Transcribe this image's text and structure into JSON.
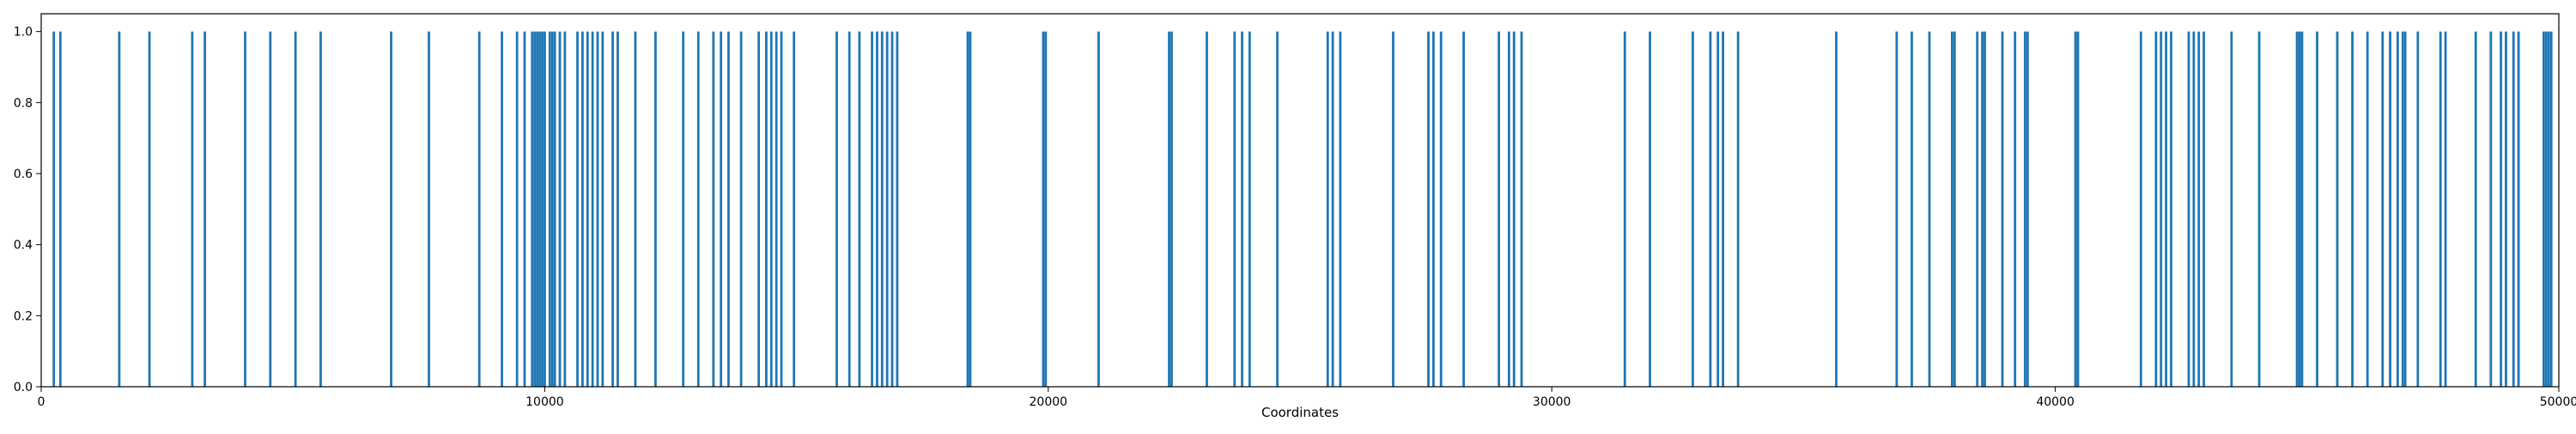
{
  "chart_data": {
    "type": "bar",
    "title": "",
    "xlabel": "Coordinates",
    "ylabel": "",
    "xlim": [
      0,
      50000
    ],
    "ylim": [
      0,
      1.05
    ],
    "grid": false,
    "bar_color": "#1f77b4",
    "x_ticks": [
      0,
      10000,
      20000,
      30000,
      40000,
      50000
    ],
    "x_tick_labels": [
      "0",
      "10000",
      "20000",
      "30000",
      "40000",
      "50000"
    ],
    "y_ticks": [
      0.0,
      0.2,
      0.4,
      0.6,
      0.8,
      1.0
    ],
    "y_tick_labels": [
      "0.0",
      "0.2",
      "0.4",
      "0.6",
      "0.8",
      "1.0"
    ],
    "series": [
      {
        "x": [
          250,
          380,
          1550,
          2150,
          3000,
          3250,
          4050,
          4550,
          5050,
          5550,
          6950,
          7700,
          8700,
          9150,
          9450,
          9600,
          9750,
          9800,
          9850,
          9900,
          9950,
          10000,
          10100,
          10150,
          10200,
          10300,
          10400,
          10650,
          10750,
          10850,
          10950,
          11050,
          11150,
          11350,
          11450,
          11800,
          12200,
          12750,
          13050,
          13350,
          13500,
          13650,
          13900,
          14250,
          14400,
          14500,
          14600,
          14700,
          14950,
          15800,
          16050,
          16250,
          16500,
          16600,
          16700,
          16800,
          16900,
          17000,
          18400,
          18450,
          19900,
          19950,
          21000,
          22400,
          22450,
          23150,
          23700,
          23850,
          24000,
          24550,
          25550,
          25650,
          25800,
          26850,
          27550,
          27650,
          27800,
          28250,
          28950,
          29150,
          29250,
          29400,
          31450,
          31950,
          32800,
          33150,
          33300,
          33400,
          33700,
          35650,
          36850,
          37150,
          37500,
          37950,
          38000,
          38450,
          38550,
          38600,
          38950,
          39200,
          39400,
          39450,
          40400,
          40450,
          41700,
          42000,
          42100,
          42200,
          42300,
          42650,
          42750,
          42850,
          42950,
          43500,
          44050,
          44800,
          44850,
          44900,
          45200,
          45600,
          45900,
          46200,
          46500,
          46650,
          46800,
          46900,
          46950,
          47200,
          47650,
          47750,
          48350,
          48650,
          48850,
          48950,
          49100,
          49200,
          49700,
          49750,
          49800,
          49850
        ],
        "values": [
          1,
          1,
          1,
          1,
          1,
          1,
          1,
          1,
          1,
          1,
          1,
          1,
          1,
          1,
          1,
          1,
          1,
          1,
          1,
          1,
          1,
          1,
          1,
          1,
          1,
          1,
          1,
          1,
          1,
          1,
          1,
          1,
          1,
          1,
          1,
          1,
          1,
          1,
          1,
          1,
          1,
          1,
          1,
          1,
          1,
          1,
          1,
          1,
          1,
          1,
          1,
          1,
          1,
          1,
          1,
          1,
          1,
          1,
          1,
          1,
          1,
          1,
          1,
          1,
          1,
          1,
          1,
          1,
          1,
          1,
          1,
          1,
          1,
          1,
          1,
          1,
          1,
          1,
          1,
          1,
          1,
          1,
          1,
          1,
          1,
          1,
          1,
          1,
          1,
          1,
          1,
          1,
          1,
          1,
          1,
          1,
          1,
          1,
          1,
          1,
          1,
          1,
          1,
          1,
          1,
          1,
          1,
          1,
          1,
          1,
          1,
          1,
          1,
          1,
          1,
          1,
          1,
          1,
          1,
          1,
          1,
          1,
          1,
          1,
          1,
          1,
          1,
          1,
          1,
          1,
          1,
          1,
          1,
          1,
          1,
          1,
          1,
          1,
          1,
          1
        ]
      }
    ]
  }
}
